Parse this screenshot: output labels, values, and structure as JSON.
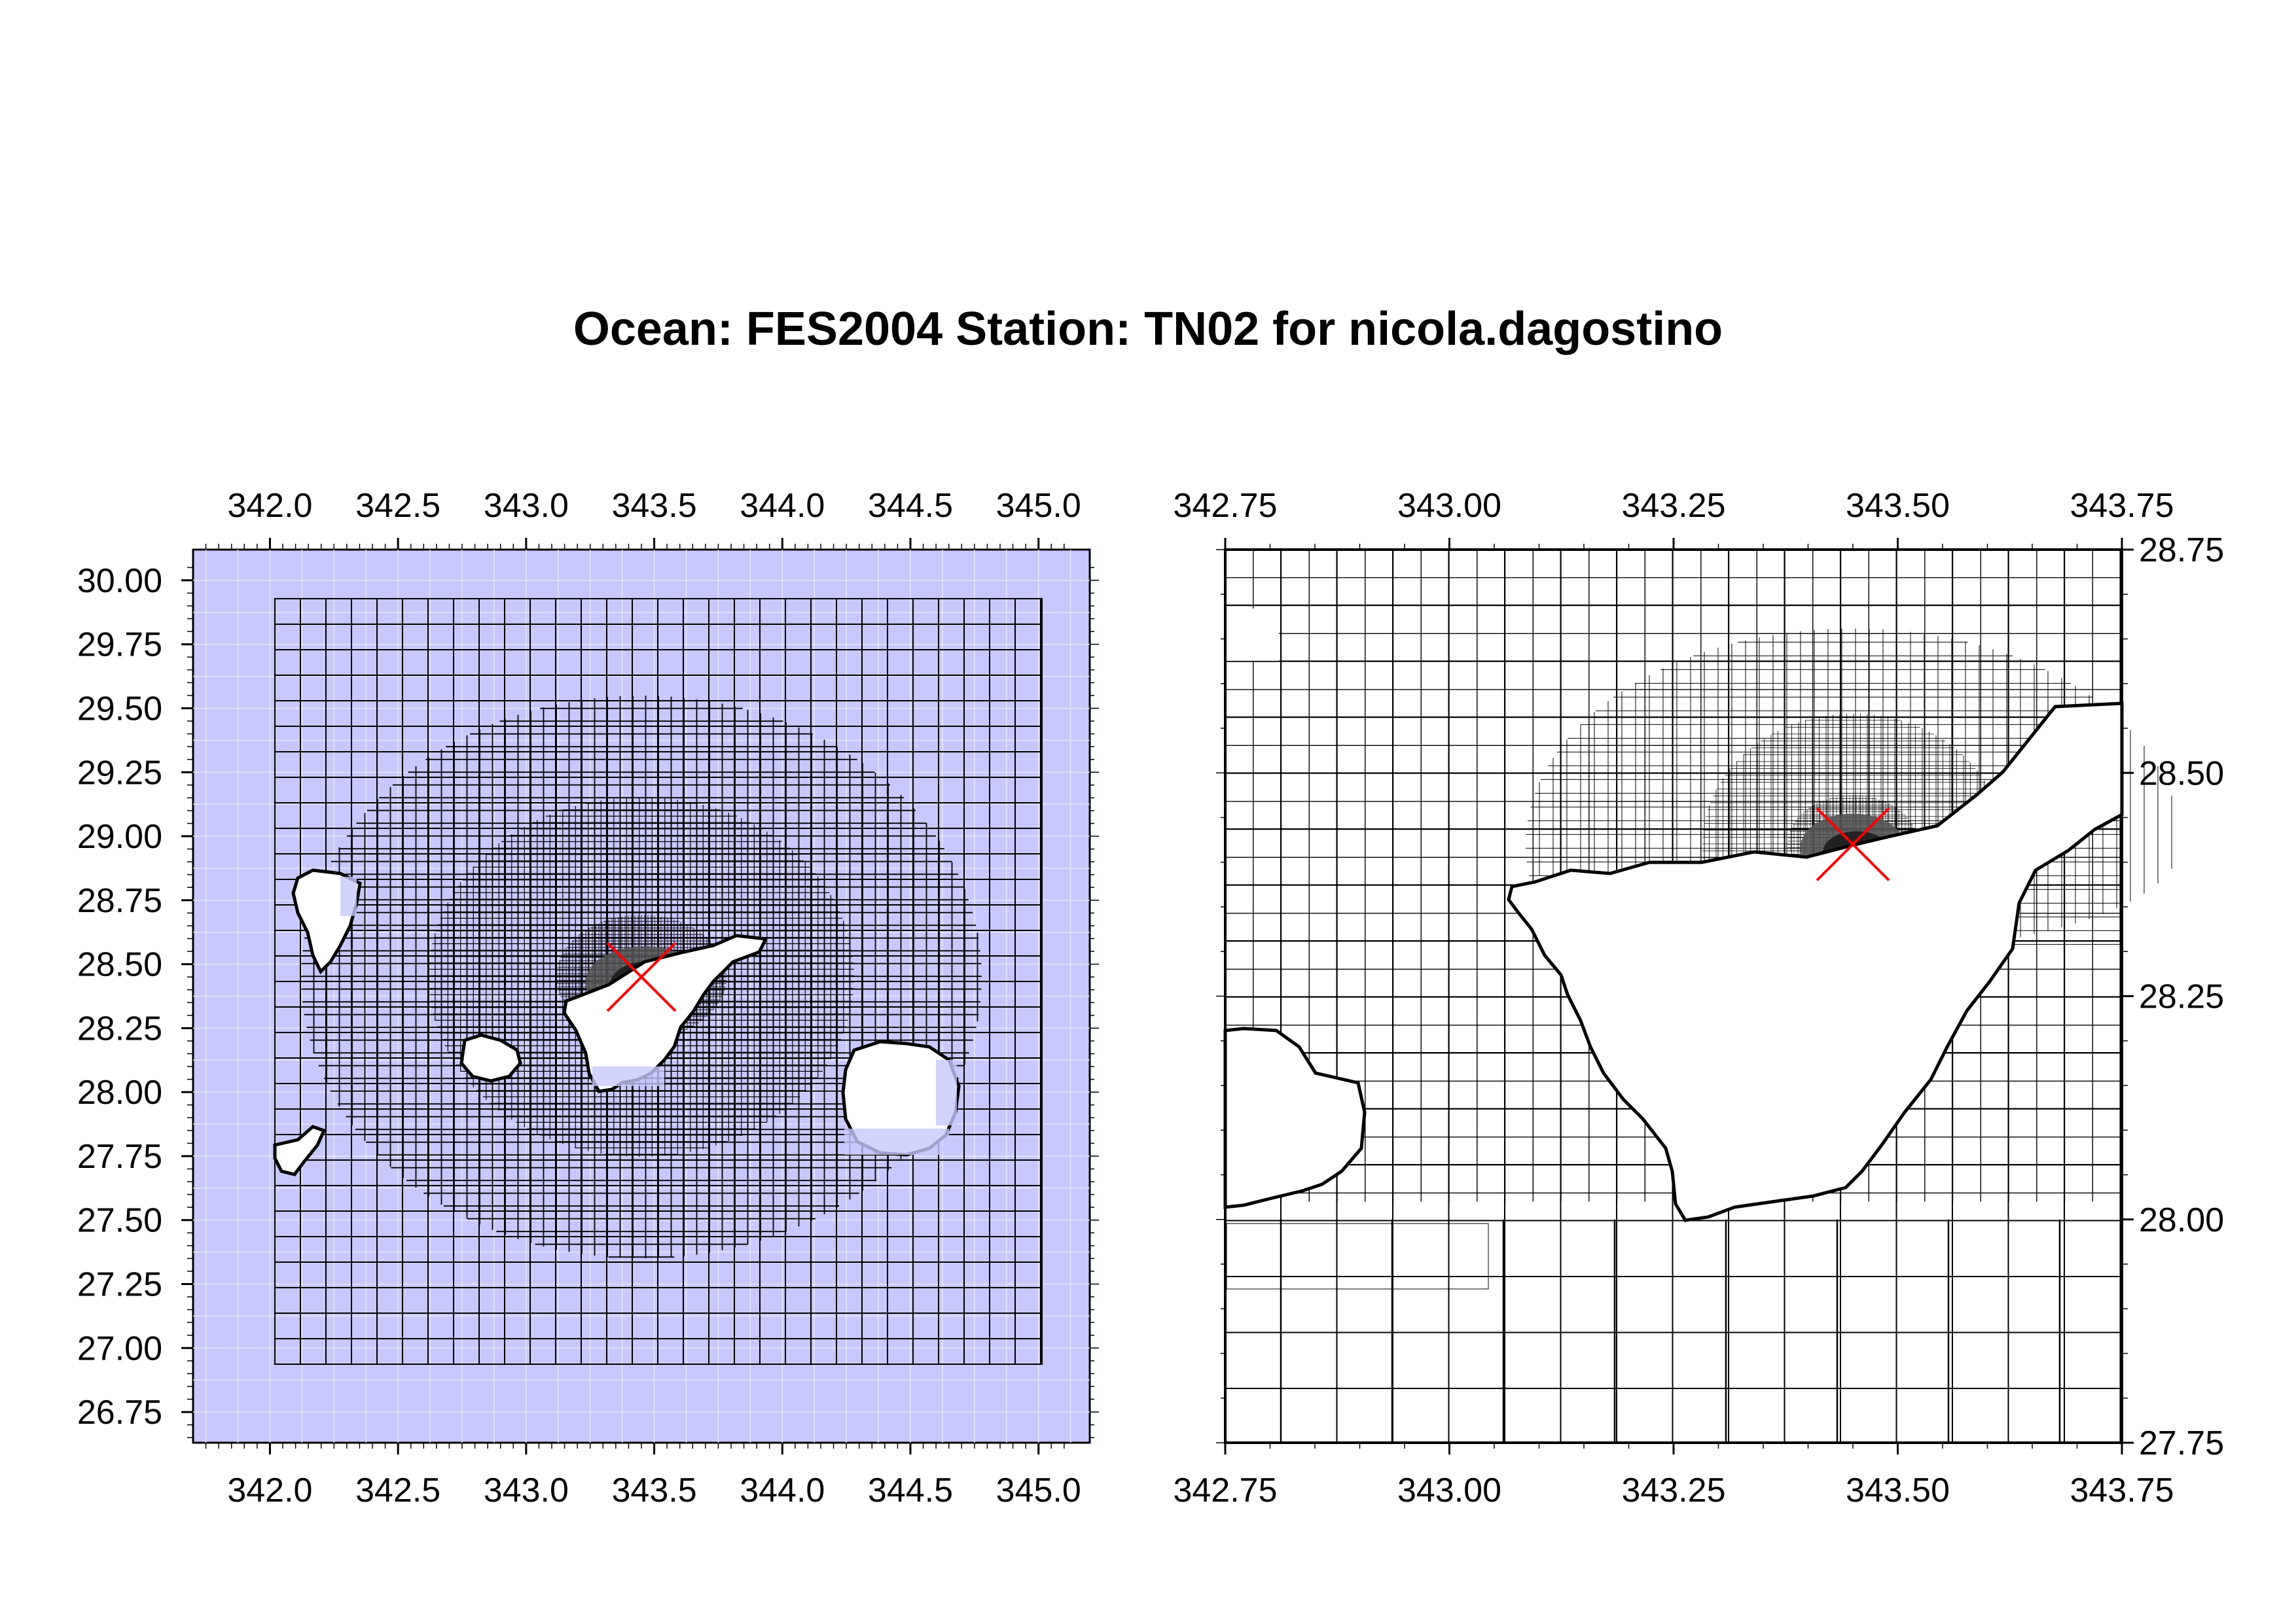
{
  "title": "Ocean: FES2004  Station: TN02  for nicola.dagostino",
  "colors": {
    "ocean": "#c8c8ff",
    "land": "#ffffff",
    "grid": "#000000",
    "marker": "#ff0000",
    "shade_dark": "#222222",
    "shade_mid": "#555555"
  },
  "left_map": {
    "x_ticks": [
      "342.0",
      "342.5",
      "343.0",
      "343.5",
      "344.0",
      "344.5",
      "345.0"
    ],
    "y_ticks": [
      "30.00",
      "29.75",
      "29.50",
      "29.25",
      "29.00",
      "28.75",
      "28.50",
      "28.25",
      "28.00",
      "27.75",
      "27.50",
      "27.25",
      "27.00",
      "26.75"
    ],
    "station": {
      "lon": 343.45,
      "lat": 28.45
    }
  },
  "right_map": {
    "x_ticks": [
      "342.75",
      "343.00",
      "343.25",
      "343.50",
      "343.75"
    ],
    "y_ticks": [
      "28.75",
      "28.50",
      "28.25",
      "28.00",
      "27.75"
    ],
    "station": {
      "lon": 343.45,
      "lat": 28.42
    }
  }
}
